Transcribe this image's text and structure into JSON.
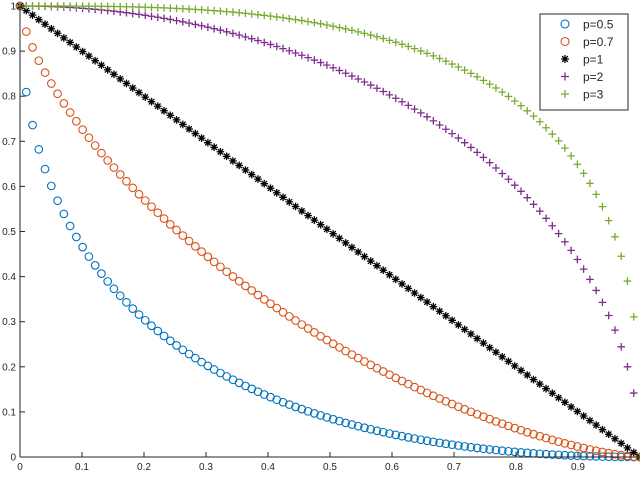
{
  "chart_data": {
    "type": "scatter",
    "title": "",
    "xlabel": "",
    "ylabel": "",
    "xlim": [
      0,
      1
    ],
    "ylim": [
      0,
      1
    ],
    "grid": false,
    "legend_position": "top-right",
    "x_ticks": [
      0,
      0.1,
      0.2,
      0.3,
      0.4,
      0.5,
      0.6,
      0.7,
      0.8,
      0.9
    ],
    "x_tick_labels": [
      "0",
      "0.1",
      "0.2",
      "0.3",
      "0.4",
      "0.5",
      "0.6",
      "0.7",
      "0.8",
      "0.9"
    ],
    "y_ticks": [
      0,
      0.1,
      0.2,
      0.3,
      0.4,
      0.5,
      0.6,
      0.7,
      0.8,
      0.9,
      1
    ],
    "y_tick_labels": [
      "0",
      "0.1",
      "0.2",
      "0.3",
      "0.4",
      "0.5",
      "0.6",
      "0.7",
      "0.8",
      "0.9",
      "1"
    ],
    "curve": "x^p + y^p = 1",
    "samples_per_series": 100,
    "series": [
      {
        "name": "p=0.5",
        "p": 0.5,
        "marker": "circle",
        "color": "#0072BD"
      },
      {
        "name": "p=0.7",
        "p": 0.7,
        "marker": "circle",
        "color": "#D95319"
      },
      {
        "name": "p=1",
        "p": 1,
        "marker": "asterisk",
        "color": "#000000"
      },
      {
        "name": "p=2",
        "p": 2,
        "marker": "plus",
        "color": "#7E2F8E"
      },
      {
        "name": "p=3",
        "p": 3,
        "marker": "plus",
        "color": "#77AC30"
      }
    ]
  }
}
